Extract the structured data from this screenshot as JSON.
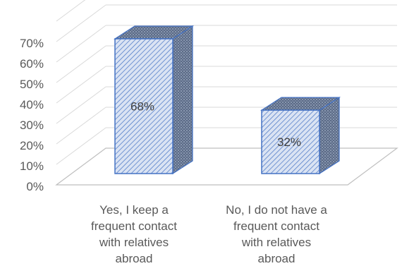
{
  "chart_data": {
    "type": "bar",
    "categories": [
      "Yes, I keep a frequent contact with relatives abroad",
      "No, I do not have a frequent contact with relatives abroad"
    ],
    "category_lines": [
      [
        "Yes, I keep a",
        "frequent contact",
        "with relatives",
        "abroad"
      ],
      [
        "No, I do not have a",
        "frequent contact",
        "with relatives",
        "abroad"
      ]
    ],
    "values": [
      68,
      32
    ],
    "data_labels": [
      "68%",
      "32%"
    ],
    "y_ticks": [
      "0%",
      "10%",
      "20%",
      "30%",
      "40%",
      "50%",
      "60%",
      "70%"
    ],
    "ylim": [
      0,
      70
    ],
    "three_d": true,
    "grid": true,
    "title": "",
    "xlabel": "",
    "ylabel": "",
    "colors": {
      "bar_fill": "#dae3f3",
      "bar_hatch": "#4472c4",
      "bar_edge": "#4472c4",
      "side_fill": "#7f8aa0",
      "grid": "#d9d9d9",
      "text": "#595959"
    }
  }
}
